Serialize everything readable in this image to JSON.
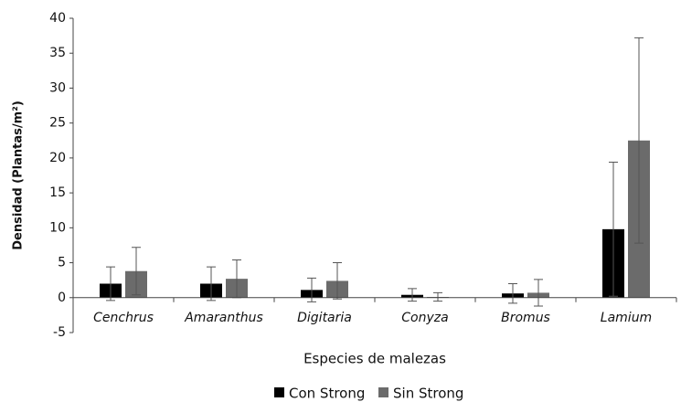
{
  "chart_data": {
    "type": "bar",
    "y_label": "Densidad (Plantas/m²)",
    "x_label": "Especies de malezas",
    "categories": [
      "Cenchrus",
      "Amaranthus",
      "Digitaria",
      "Conyza",
      "Bromus",
      "Lamium"
    ],
    "series": [
      {
        "name": "Con Strong",
        "color": "#000000",
        "values": [
          2.0,
          2.0,
          1.1,
          0.4,
          0.6,
          9.8
        ],
        "errors": [
          2.4,
          2.4,
          1.7,
          0.9,
          1.4,
          9.6
        ]
      },
      {
        "name": "Sin Strong",
        "color": "#6b6b6b",
        "values": [
          3.8,
          2.7,
          2.4,
          0.1,
          0.7,
          22.5
        ],
        "errors": [
          3.4,
          2.7,
          2.6,
          0.6,
          1.9,
          14.7
        ]
      }
    ],
    "ylim": [
      -5,
      40
    ],
    "yticks": [
      -5,
      0,
      5,
      10,
      15,
      20,
      25,
      30,
      35,
      40
    ],
    "grid": false,
    "legend": "bottom"
  }
}
